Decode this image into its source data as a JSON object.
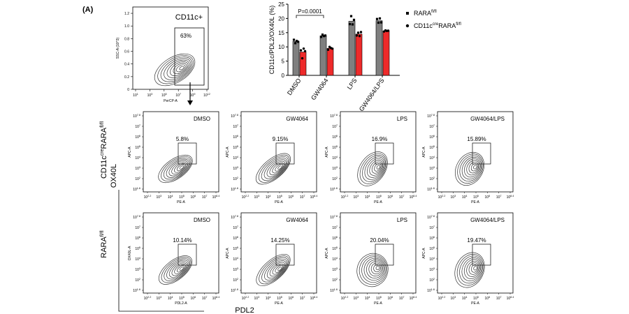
{
  "panel_label": "(A)",
  "gating_plot": {
    "title": "CD11c+",
    "gate_percent": "63%",
    "ylabel": "SSC-A (10^3)",
    "xlabel": "PerCP-A",
    "y_ticks": [
      "0",
      "0.2",
      "0.4",
      "0.6",
      "0.8",
      "1.0",
      "1.2"
    ],
    "x_ticks": [
      "10^1",
      "10^3",
      "10^5",
      "10^7",
      "10^9",
      "10^12"
    ]
  },
  "chart_data": {
    "type": "bar",
    "ylabel": "CD11c/PDL2/OX40L (%)",
    "ylim": [
      0,
      25
    ],
    "y_ticks": [
      0,
      5,
      10,
      15,
      20,
      25
    ],
    "categories": [
      "DMSO",
      "GW4064",
      "LPS",
      "GW4064/LPS"
    ],
    "annotation": "P=0.0001",
    "series": [
      {
        "name": "RARA fl/fl",
        "legend_main": "RARA",
        "legend_sup": "fl/fl",
        "marker": "square",
        "color": "#7f7f7f",
        "values": [
          11.9,
          13.9,
          19.0,
          19.2
        ],
        "points": [
          [
            12.5,
            11.3,
            12.1,
            11.8
          ],
          [
            13.5,
            14.3,
            13.8,
            14.0
          ],
          [
            18.0,
            20.8,
            17.9,
            19.5
          ],
          [
            19.8,
            18.5,
            20.0,
            18.6
          ]
        ]
      },
      {
        "name": "CD11c cre RARA fl/fl",
        "legend_main": "CD11c",
        "legend_sup": "cre",
        "legend_main2": "RARA",
        "legend_sup2": "fl/fl",
        "marker": "circle",
        "color": "#ee2a2a",
        "values": [
          8.2,
          9.5,
          14.5,
          15.6
        ],
        "points": [
          [
            8.8,
            6.0,
            9.4,
            8.5
          ],
          [
            9.0,
            10.0,
            9.6,
            9.4
          ],
          [
            14.0,
            15.0,
            13.8,
            15.2
          ],
          [
            15.4,
            15.8,
            15.6,
            15.7
          ]
        ]
      }
    ]
  },
  "row_labels": {
    "top_main": "CD11c",
    "top_sup1": "cre",
    "top_main2": "RARA",
    "top_sup2": "fl/fl",
    "top_second_line": "OX40L",
    "bottom_main": "RARA",
    "bottom_sup": "fl/fl",
    "x_axis_label": "PDL2"
  },
  "flow_plots": [
    {
      "row": "top",
      "treatment": "DMSO",
      "percent": "5.8%",
      "xlabel": "PE-A",
      "ylabel": "APC-A"
    },
    {
      "row": "top",
      "treatment": "GW4064",
      "percent": "9.15%",
      "xlabel": "PE-A",
      "ylabel": "APC-A"
    },
    {
      "row": "top",
      "treatment": "LPS",
      "percent": "16.9%",
      "xlabel": "PE-A",
      "ylabel": "APC-A"
    },
    {
      "row": "top",
      "treatment": "GW4064/LPS",
      "percent": "15.89%",
      "xlabel": "PE-A",
      "ylabel": "APC-A"
    },
    {
      "row": "bottom",
      "treatment": "DMSO",
      "percent": "10.14%",
      "xlabel": "PDL2-A",
      "ylabel": "OX40L-A"
    },
    {
      "row": "bottom",
      "treatment": "GW4064",
      "percent": "14.25%",
      "xlabel": "PE-A",
      "ylabel": "APC-A"
    },
    {
      "row": "bottom",
      "treatment": "LPS",
      "percent": "20.04%",
      "xlabel": "PE-A",
      "ylabel": "APC-A"
    },
    {
      "row": "bottom",
      "treatment": "GW4064/LPS",
      "percent": "19.47%",
      "xlabel": "PE-A",
      "ylabel": "APC-A"
    }
  ],
  "flow_axis": {
    "x_ticks": [
      "10^2.2",
      "10^3",
      "10^4",
      "10^5",
      "10^6",
      "10^7",
      "10^8.4"
    ],
    "y_ticks": [
      "10^1.6",
      "10^2",
      "10^3",
      "10^4",
      "10^5",
      "10^6",
      "10^7",
      "10^7.8"
    ]
  },
  "colors": {
    "grey_bar": "#7f7f7f",
    "red_bar": "#ee2a2a",
    "contour": "#333333"
  }
}
